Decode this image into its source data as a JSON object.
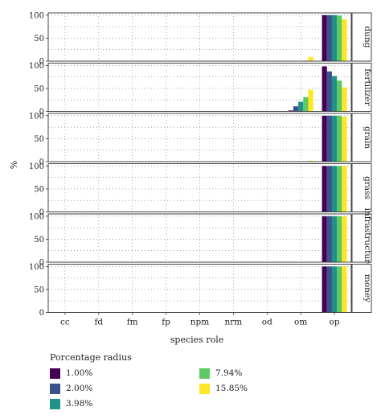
{
  "chart_data": {
    "type": "bar",
    "xlabel": "species role",
    "ylabel": "%",
    "categories": [
      "cc",
      "fd",
      "fm",
      "fp",
      "npm",
      "nrm",
      "od",
      "om",
      "op"
    ],
    "yticks": [
      0,
      50,
      100
    ],
    "ylim": [
      0,
      105
    ],
    "grid": true,
    "facets": [
      {
        "label": "dung",
        "series": [
          {
            "name": "1.00%",
            "values": [
              0,
              0,
              0,
              0,
              0,
              0,
              0,
              0,
              100
            ]
          },
          {
            "name": "2.00%",
            "values": [
              0,
              0,
              0,
              0,
              0,
              0,
              0,
              0,
              100
            ]
          },
          {
            "name": "3.98%",
            "values": [
              0,
              0,
              0,
              0,
              0,
              0,
              0,
              0,
              100
            ]
          },
          {
            "name": "7.94%",
            "values": [
              0,
              0,
              0,
              0,
              0,
              0,
              0,
              1,
              99
            ]
          },
          {
            "name": "15.85%",
            "values": [
              0,
              0,
              0,
              0,
              0,
              0,
              0,
              9,
              91
            ]
          }
        ]
      },
      {
        "label": "fertilizer",
        "series": [
          {
            "name": "1.00%",
            "values": [
              0,
              0,
              0,
              0,
              0,
              0,
              1,
              2,
              98
            ]
          },
          {
            "name": "2.00%",
            "values": [
              0,
              0,
              0,
              0,
              0,
              0,
              1,
              11,
              87
            ]
          },
          {
            "name": "3.98%",
            "values": [
              0,
              0,
              0,
              0,
              0,
              0,
              1,
              21,
              77
            ]
          },
          {
            "name": "7.94%",
            "values": [
              0,
              0,
              0,
              0,
              0,
              0,
              1,
              31,
              67
            ]
          },
          {
            "name": "15.85%",
            "values": [
              0,
              0,
              0,
              0,
              0,
              0,
              1,
              47,
              52
            ]
          }
        ]
      },
      {
        "label": "grain",
        "series": [
          {
            "name": "1.00%",
            "values": [
              0,
              0,
              0,
              0,
              0,
              0,
              0,
              0,
              100
            ]
          },
          {
            "name": "2.00%",
            "values": [
              0,
              0,
              0,
              0,
              0,
              0,
              0,
              0,
              100
            ]
          },
          {
            "name": "3.98%",
            "values": [
              0,
              0,
              0,
              0,
              0,
              0,
              0,
              0,
              100
            ]
          },
          {
            "name": "7.94%",
            "values": [
              0,
              0,
              0,
              0,
              0,
              0,
              0,
              0,
              100
            ]
          },
          {
            "name": "15.85%",
            "values": [
              0,
              0,
              0,
              0,
              0,
              0,
              0,
              2,
              98
            ]
          }
        ]
      },
      {
        "label": "grass",
        "series": [
          {
            "name": "1.00%",
            "values": [
              0,
              0,
              0,
              0,
              0,
              0,
              0,
              0,
              100
            ]
          },
          {
            "name": "2.00%",
            "values": [
              0,
              0,
              0,
              0,
              0,
              0,
              0,
              0,
              100
            ]
          },
          {
            "name": "3.98%",
            "values": [
              0,
              0,
              0,
              0,
              0,
              0,
              0,
              0,
              100
            ]
          },
          {
            "name": "7.94%",
            "values": [
              0,
              0,
              0,
              0,
              0,
              0,
              0,
              0,
              100
            ]
          },
          {
            "name": "15.85%",
            "values": [
              0,
              0,
              0,
              0,
              0,
              0,
              0,
              0,
              100
            ]
          }
        ]
      },
      {
        "label": "infrastructure",
        "series": [
          {
            "name": "1.00%",
            "values": [
              0,
              0,
              0,
              0,
              0,
              0,
              0,
              0,
              100
            ]
          },
          {
            "name": "2.00%",
            "values": [
              0,
              0,
              0,
              0,
              0,
              0,
              0,
              0,
              100
            ]
          },
          {
            "name": "3.98%",
            "values": [
              0,
              0,
              0,
              0,
              0,
              0,
              0,
              0,
              100
            ]
          },
          {
            "name": "7.94%",
            "values": [
              0,
              0,
              0,
              0,
              0,
              0,
              0,
              0,
              100
            ]
          },
          {
            "name": "15.85%",
            "values": [
              0,
              0,
              0,
              0,
              0,
              0,
              0,
              0,
              100
            ]
          }
        ]
      },
      {
        "label": "money",
        "series": [
          {
            "name": "1.00%",
            "values": [
              0,
              0,
              0,
              0,
              0,
              0,
              0,
              0,
              100
            ]
          },
          {
            "name": "2.00%",
            "values": [
              0,
              0,
              0,
              0,
              0,
              0,
              0,
              0,
              100
            ]
          },
          {
            "name": "3.98%",
            "values": [
              0,
              0,
              0,
              0,
              0,
              0,
              0,
              0,
              100
            ]
          },
          {
            "name": "7.94%",
            "values": [
              0,
              0,
              0,
              0,
              0,
              0,
              0,
              0,
              100
            ]
          },
          {
            "name": "15.85%",
            "values": [
              0,
              0,
              0,
              0,
              0,
              0,
              0,
              0,
              100
            ]
          }
        ]
      }
    ],
    "legend": {
      "title": "Porcentage radius",
      "placement": "bottom",
      "items": [
        {
          "label": "1.00%",
          "color": "#440154"
        },
        {
          "label": "2.00%",
          "color": "#3b528b"
        },
        {
          "label": "3.98%",
          "color": "#21918c"
        },
        {
          "label": "7.94%",
          "color": "#5ec962"
        },
        {
          "label": "15.85%",
          "color": "#fde725"
        }
      ]
    }
  },
  "colors": {
    "series": [
      "#440154",
      "#3b528b",
      "#21918c",
      "#5ec962",
      "#fde725"
    ],
    "panel_border": "#333333",
    "strip_background": "#ffffff",
    "grid": "#6f6f6f"
  }
}
